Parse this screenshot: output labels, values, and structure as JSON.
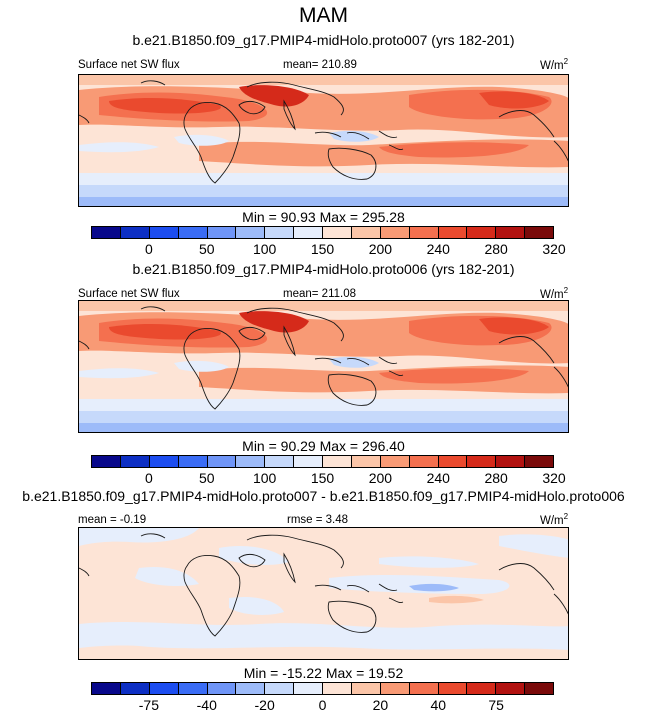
{
  "title": "MAM",
  "colors": {
    "abs_palette": [
      "#08088b",
      "#0d2fc4",
      "#1c4df0",
      "#3a6cf5",
      "#6f95f7",
      "#9dbbf9",
      "#c6d9fb",
      "#e6eefc",
      "#fde4d6",
      "#fbc5a8",
      "#f89a75",
      "#f4704f",
      "#ea4a2e",
      "#d52a1a",
      "#b21210",
      "#7a0a0a"
    ],
    "diff_palette": [
      "#08088b",
      "#0d2fc4",
      "#1c4df0",
      "#3a6cf5",
      "#6f95f7",
      "#9dbbf9",
      "#c6d9fb",
      "#e6eefc",
      "#fde4d6",
      "#fbc5a8",
      "#f89a75",
      "#f4704f",
      "#ea4a2e",
      "#d52a1a",
      "#b21210",
      "#7a0a0a"
    ],
    "land_outline": "#1a1a1a"
  },
  "panels": [
    {
      "case_title": "b.e21.B1850.f09_g17.PMIP4-midHolo.proto007 (yrs 182-201)",
      "left_label": "Surface net SW flux",
      "center_label": "mean= 210.89",
      "units": "W/m",
      "units_sup": "2",
      "minmax": "Min =  90.93 Max = 295.28",
      "colorbar_ticks": [
        "0",
        "50",
        "100",
        "150",
        "200",
        "240",
        "280",
        "320"
      ]
    },
    {
      "case_title": "b.e21.B1850.f09_g17.PMIP4-midHolo.proto006 (yrs 182-201)",
      "left_label": "Surface net SW flux",
      "center_label": "mean= 211.08",
      "units": "W/m",
      "units_sup": "2",
      "minmax": "Min =  90.29 Max = 296.40",
      "colorbar_ticks": [
        "0",
        "50",
        "100",
        "150",
        "200",
        "240",
        "280",
        "320"
      ]
    },
    {
      "case_title": "b.e21.B1850.f09_g17.PMIP4-midHolo.proto007 - b.e21.B1850.f09_g17.PMIP4-midHolo.proto006",
      "left_label": "mean =  -0.19",
      "center_label": "rmse =   3.48",
      "units": "W/m",
      "units_sup": "2",
      "minmax": "Min = -15.22 Max =  19.52",
      "colorbar_ticks": [
        "-75",
        "-40",
        "-20",
        "0",
        "20",
        "40",
        "75"
      ]
    }
  ],
  "chart_data": {
    "type": "heatmap",
    "title": "MAM",
    "variable": "Surface net SW flux",
    "units": "W/m2",
    "panels": [
      {
        "case": "b.e21.B1850.f09_g17.PMIP4-midHolo.proto007 (yrs 182-201)",
        "mean": 210.89,
        "min": 90.93,
        "max": 295.28,
        "levels": [
          0,
          25,
          50,
          75,
          100,
          125,
          150,
          175,
          200,
          220,
          240,
          260,
          280,
          300,
          320
        ]
      },
      {
        "case": "b.e21.B1850.f09_g17.PMIP4-midHolo.proto006 (yrs 182-201)",
        "mean": 211.08,
        "min": 90.29,
        "max": 296.4,
        "levels": [
          0,
          25,
          50,
          75,
          100,
          125,
          150,
          175,
          200,
          220,
          240,
          260,
          280,
          300,
          320
        ]
      },
      {
        "case": "b.e21.B1850.f09_g17.PMIP4-midHolo.proto007 - b.e21.B1850.f09_g17.PMIP4-midHolo.proto006",
        "mean": -0.19,
        "rmse": 3.48,
        "min": -15.22,
        "max": 19.52,
        "levels": [
          -100,
          -75,
          -60,
          -40,
          -30,
          -20,
          -10,
          0,
          10,
          20,
          30,
          40,
          60,
          75,
          100
        ]
      }
    ]
  }
}
